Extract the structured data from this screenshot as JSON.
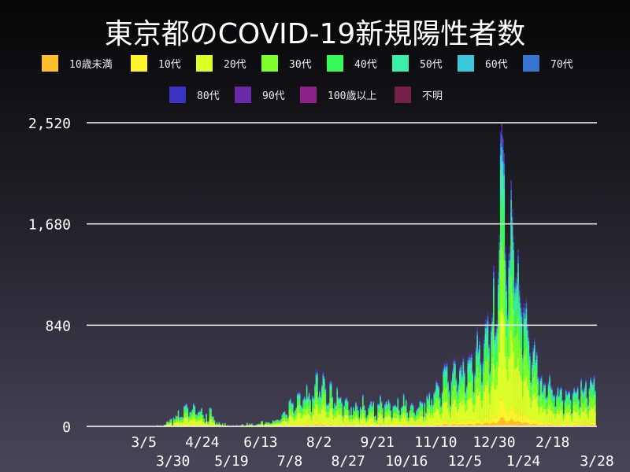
{
  "chart_data": {
    "type": "bar",
    "stacked": true,
    "title": "東京都のCOVID-19新規陽性者数",
    "legend_position": "top",
    "series_names": [
      "10歳未満",
      "10代",
      "20代",
      "30代",
      "40代",
      "50代",
      "60代",
      "70代",
      "80代",
      "90代",
      "100歳以上",
      "不明"
    ],
    "colors": [
      "#ffbf2a",
      "#fff52a",
      "#dcff2a",
      "#7cff2a",
      "#38f85a",
      "#3deeaa",
      "#3cc8dc",
      "#3676d0",
      "#3a32c0",
      "#6a2aa8",
      "#8a2288",
      "#74204a"
    ],
    "age_share": [
      0.03,
      0.06,
      0.3,
      0.22,
      0.15,
      0.11,
      0.05,
      0.04,
      0.025,
      0.01,
      0.0005,
      0.0045
    ],
    "date_range": [
      "2020-01-24",
      "2021-03-28"
    ],
    "xlim": [
      "2020-01-16",
      "2021-03-28"
    ],
    "ylim": [
      0,
      2520
    ],
    "yticks": [
      {
        "v": 0,
        "label": "0"
      },
      {
        "v": 840,
        "label": "840"
      },
      {
        "v": 1680,
        "label": "1,680"
      },
      {
        "v": 2520,
        "label": "2,520"
      }
    ],
    "xticks": [
      {
        "d": "2020-03-05",
        "label": "3/5"
      },
      {
        "d": "2020-03-30",
        "label": "3/30"
      },
      {
        "d": "2020-04-24",
        "label": "4/24"
      },
      {
        "d": "2020-05-19",
        "label": "5/19"
      },
      {
        "d": "2020-06-13",
        "label": "6/13"
      },
      {
        "d": "2020-07-08",
        "label": "7/8"
      },
      {
        "d": "2020-08-02",
        "label": "8/2"
      },
      {
        "d": "2020-08-27",
        "label": "8/27"
      },
      {
        "d": "2020-09-21",
        "label": "9/21"
      },
      {
        "d": "2020-10-16",
        "label": "10/16"
      },
      {
        "d": "2020-11-10",
        "label": "11/10"
      },
      {
        "d": "2020-12-05",
        "label": "12/5"
      },
      {
        "d": "2020-12-30",
        "label": "12/30"
      },
      {
        "d": "2021-01-24",
        "label": "1/24"
      },
      {
        "d": "2021-02-18",
        "label": "2/18"
      },
      {
        "d": "2021-03-28",
        "label": "3/28"
      }
    ],
    "grid": true,
    "totals": [
      1,
      0,
      1,
      0,
      0,
      0,
      1,
      0,
      0,
      0,
      0,
      0,
      0,
      0,
      0,
      0,
      0,
      0,
      0,
      0,
      1,
      2,
      3,
      1,
      1,
      2,
      3,
      0,
      3,
      2,
      1,
      3,
      0,
      1,
      1,
      0,
      0,
      1,
      0,
      2,
      1,
      6,
      3,
      5,
      2,
      0,
      2,
      7,
      2,
      5,
      1,
      3,
      1,
      12,
      2,
      9,
      11,
      7,
      7,
      16,
      17,
      41,
      47,
      40,
      63,
      68,
      13,
      78,
      66,
      97,
      89,
      143,
      80,
      83,
      87,
      80,
      178,
      189,
      197,
      166,
      91,
      127,
      126,
      149,
      201,
      181,
      107,
      102,
      123,
      132,
      134,
      161,
      103,
      72,
      39,
      112,
      47,
      46,
      165,
      160,
      91,
      87,
      57,
      23,
      38,
      23,
      39,
      22,
      15,
      28,
      10,
      30,
      10,
      14,
      5,
      9,
      5,
      5,
      11,
      3,
      2,
      14,
      8,
      10,
      11,
      15,
      22,
      14,
      5,
      13,
      34,
      12,
      28,
      20,
      26,
      14,
      13,
      12,
      18,
      22,
      25,
      24,
      47,
      48,
      16,
      27,
      41,
      35,
      39,
      35,
      29,
      31,
      55,
      48,
      54,
      57,
      60,
      58,
      54,
      67,
      107,
      124,
      131,
      111,
      102,
      75,
      224,
      243,
      206,
      206,
      119,
      143,
      165,
      286,
      293,
      290,
      188,
      168,
      237,
      260,
      238,
      366,
      260,
      295,
      239,
      131,
      266,
      250,
      367,
      463,
      472,
      258,
      309,
      263,
      360,
      462,
      429,
      331,
      197,
      188,
      206,
      389,
      385,
      260,
      161,
      207,
      186,
      339,
      258,
      248,
      256,
      212,
      95,
      182,
      236,
      250,
      226,
      148,
      100,
      170,
      100,
      170,
      141,
      211,
      181,
      143,
      80,
      170,
      149,
      276,
      187,
      146,
      80,
      100,
      163,
      191,
      220,
      181,
      218,
      88,
      98,
      59,
      195,
      195,
      270,
      218,
      163,
      77,
      194,
      220,
      196,
      235,
      207,
      143,
      78,
      178,
      185,
      186,
      173,
      249,
      146,
      102,
      166,
      177,
      284,
      184,
      235,
      124,
      78,
      139,
      186,
      203,
      186,
      124,
      102,
      140,
      158,
      171,
      221,
      215,
      208,
      87,
      209,
      122,
      270,
      242,
      294,
      189,
      242,
      189,
      293,
      317,
      393,
      374,
      352,
      255,
      180,
      298,
      493,
      534,
      522,
      539,
      391,
      314,
      186,
      401,
      481,
      570,
      561,
      418,
      311,
      372,
      500,
      533,
      449,
      584,
      480,
      299,
      352,
      572,
      602,
      595,
      621,
      480,
      305,
      460,
      678,
      822,
      664,
      736,
      556,
      392,
      563,
      748,
      888,
      884,
      949,
      708,
      481,
      856,
      944,
      1337,
      783,
      814,
      884,
      1278,
      1591,
      2447,
      2520,
      2392,
      2268,
      1494,
      1219,
      970,
      1433,
      1502,
      2044,
      1809,
      1592,
      1204,
      1240,
      1274,
      1471,
      1175,
      1070,
      986,
      618,
      1026,
      973,
      1064,
      868,
      769,
      633,
      393,
      556,
      676,
      734,
      577,
      639,
      429,
      276,
      412,
      434,
      307,
      369,
      371,
      254,
      266,
      378,
      445,
      353,
      327,
      275,
      272,
      178,
      275,
      340,
      270,
      329,
      337,
      232,
      116,
      232,
      316,
      279,
      301,
      303,
      237,
      116,
      290,
      335,
      304,
      304,
      342,
      239,
      175,
      409,
      323,
      303,
      342,
      394,
      256,
      187,
      337,
      420,
      394,
      376,
      430,
      313
    ]
  }
}
